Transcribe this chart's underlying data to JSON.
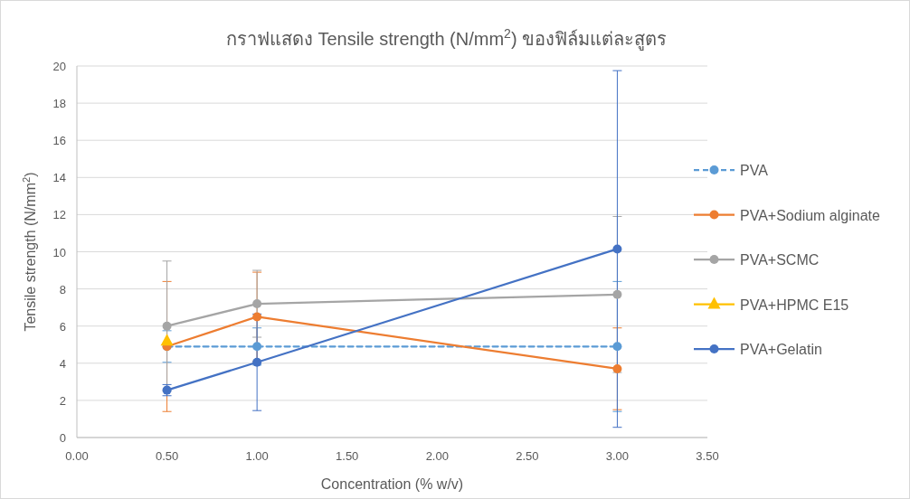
{
  "chart_data": {
    "type": "line",
    "title": "กราฟแสดง Tensile strength (N/mm$^{2}$) ของฟิล์มแต่ละสูตร",
    "xlabel": "Concentration (% w/v)",
    "ylabel": "Tensile strength (N/mm$^{2}$)",
    "xlim": [
      0,
      3.5
    ],
    "ylim": [
      0,
      20
    ],
    "xticks": [
      {
        "value": 0,
        "label": "0.00"
      },
      {
        "value": 0.5,
        "label": "0.50"
      },
      {
        "value": 1,
        "label": "1.00"
      },
      {
        "value": 1.5,
        "label": "1.50"
      },
      {
        "value": 2,
        "label": "2.00"
      },
      {
        "value": 2.5,
        "label": "2.50"
      },
      {
        "value": 3,
        "label": "3.00"
      },
      {
        "value": 3.5,
        "label": "3.50"
      }
    ],
    "yticks": [
      0,
      2,
      4,
      6,
      8,
      10,
      12,
      14,
      16,
      18,
      20
    ],
    "grid": "y",
    "legend": "right",
    "series": [
      {
        "name": "PVA",
        "color": "#5b9bd5",
        "marker": "circle",
        "line_style": "dashed",
        "x": [
          0.5,
          1,
          3
        ],
        "values": [
          4.9,
          4.9,
          4.9
        ],
        "errors": [
          0.85,
          1.0,
          3.5
        ]
      },
      {
        "name": "PVA+Sodium alginate",
        "color": "#ed7d31",
        "marker": "circle",
        "line_style": "solid",
        "x": [
          0.5,
          1,
          3
        ],
        "values": [
          4.9,
          6.5,
          3.7
        ],
        "errors": [
          3.5,
          2.4,
          2.2
        ]
      },
      {
        "name": "PVA+SCMC",
        "color": "#a5a5a5",
        "marker": "circle",
        "line_style": "solid",
        "x": [
          0.5,
          1,
          3
        ],
        "values": [
          6.0,
          7.2,
          7.7
        ],
        "errors": [
          3.5,
          1.8,
          4.2
        ]
      },
      {
        "name": "PVA+HPMC E15",
        "color": "#ffc000",
        "marker": "triangle",
        "line_style": "solid",
        "x": [
          0.5
        ],
        "values": [
          5.2
        ]
      },
      {
        "name": "PVA+Gelatin",
        "color": "#4472c4",
        "marker": "circle",
        "line_style": "solid",
        "x": [
          0.5,
          1,
          3
        ],
        "values": [
          2.55,
          4.05,
          10.15
        ],
        "errors": [
          0.3,
          2.6,
          9.6
        ]
      }
    ]
  }
}
